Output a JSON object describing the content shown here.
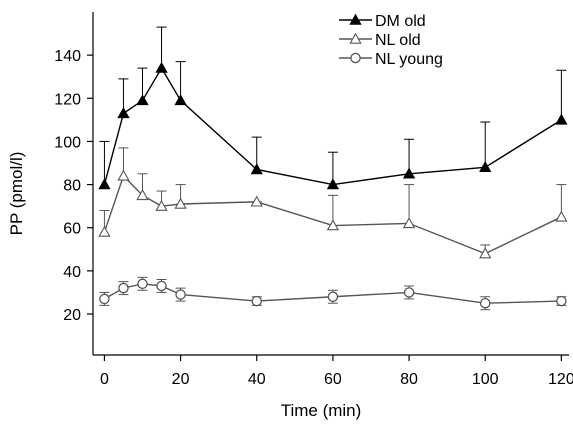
{
  "chart_data": {
    "type": "line",
    "title": "",
    "xlabel": "Time (min)",
    "ylabel": "PP (pmol/l)",
    "xlim": [
      -3,
      122
    ],
    "ylim": [
      1,
      160
    ],
    "x_ticks": [
      0,
      20,
      40,
      60,
      80,
      100,
      120
    ],
    "x_tick_labels": [
      "0",
      "20",
      "40",
      "60",
      "80",
      "100",
      "120"
    ],
    "y_ticks": [
      20,
      40,
      60,
      80,
      100,
      120,
      140
    ],
    "y_tick_labels": [
      "20",
      "40",
      "60",
      "80",
      "100",
      "120",
      "140"
    ],
    "grid": false,
    "legend_position": "top-right",
    "series": [
      {
        "name": "DM old",
        "marker": "filled-triangle",
        "color": "#000000",
        "x": [
          0,
          5,
          10,
          15,
          20,
          40,
          60,
          80,
          100,
          120
        ],
        "values": [
          80,
          113,
          119,
          134,
          119,
          87,
          80,
          85,
          88,
          110
        ],
        "error_upper": [
          100,
          129,
          134,
          153,
          137,
          102,
          95,
          101,
          109,
          133
        ]
      },
      {
        "name": "NL old",
        "marker": "open-triangle",
        "color": "#555555",
        "x": [
          0,
          5,
          10,
          15,
          20,
          40,
          60,
          80,
          100,
          120
        ],
        "values": [
          58,
          84,
          75,
          70,
          71,
          72,
          61,
          62,
          48,
          65
        ],
        "error_upper": [
          68,
          97,
          85,
          77,
          80,
          72,
          75,
          80,
          52,
          80
        ]
      },
      {
        "name": "NL young",
        "marker": "open-circle",
        "color": "#555555",
        "x": [
          0,
          5,
          10,
          15,
          20,
          40,
          60,
          80,
          100,
          120
        ],
        "values": [
          27,
          32,
          34,
          33,
          29,
          26,
          28,
          30,
          25,
          26
        ],
        "error": [
          3,
          3,
          3,
          3,
          3,
          2,
          3,
          3,
          3,
          2
        ]
      }
    ]
  }
}
